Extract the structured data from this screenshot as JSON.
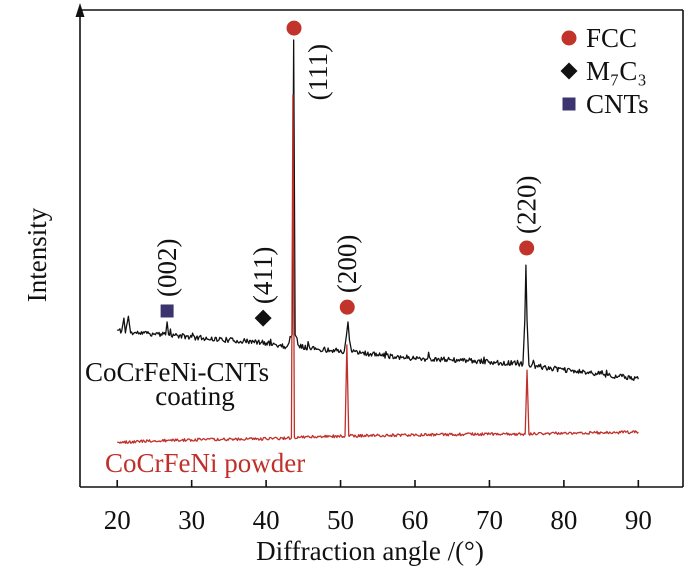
{
  "chart_data": {
    "type": "line",
    "xlabel": "Diffraction angle /(°)",
    "ylabel": "Intensity",
    "xlim": [
      15,
      96
    ],
    "ylim": [
      0,
      100
    ],
    "x_ticks": [
      20,
      30,
      40,
      50,
      60,
      70,
      80,
      90
    ],
    "grid": false,
    "legend": {
      "position": "top-right",
      "items": [
        {
          "label": "FCC",
          "marker": "circle",
          "color": "#c0342b"
        },
        {
          "label": "M₇C₃",
          "marker": "diamond",
          "color": "#111111"
        },
        {
          "label": "CNTs",
          "marker": "square",
          "color": "#3b356f"
        }
      ]
    },
    "series": [
      {
        "label_lines": [
          "CoCrFeNi-CNTs",
          "coating"
        ],
        "color": "#111111",
        "points": [
          [
            20.0,
            32.9
          ],
          [
            20.6,
            32.7
          ],
          [
            20.9,
            35.4
          ],
          [
            21.1,
            32.3
          ],
          [
            21.5,
            35.8
          ],
          [
            21.8,
            32.3
          ],
          [
            23.0,
            32.3
          ],
          [
            25.0,
            32.1
          ],
          [
            26.5,
            31.9
          ],
          [
            26.7,
            34.6
          ],
          [
            26.9,
            31.9
          ],
          [
            30.0,
            31.4
          ],
          [
            35.0,
            30.8
          ],
          [
            40.0,
            30.2
          ],
          [
            42.8,
            29.4
          ],
          [
            43.5,
            31.9
          ],
          [
            43.7,
            93.7
          ],
          [
            43.9,
            31.9
          ],
          [
            44.4,
            29.6
          ],
          [
            47.0,
            28.9
          ],
          [
            50.5,
            28.5
          ],
          [
            50.8,
            31.9
          ],
          [
            51.0,
            34.6
          ],
          [
            51.2,
            30.8
          ],
          [
            51.5,
            28.3
          ],
          [
            55.0,
            27.7
          ],
          [
            60.0,
            27.0
          ],
          [
            65.0,
            26.6
          ],
          [
            70.0,
            26.2
          ],
          [
            74.5,
            25.8
          ],
          [
            74.75,
            35.0
          ],
          [
            74.9,
            46.5
          ],
          [
            75.05,
            35.0
          ],
          [
            75.3,
            25.6
          ],
          [
            80.0,
            24.5
          ],
          [
            85.0,
            23.7
          ],
          [
            90.0,
            22.6
          ]
        ]
      },
      {
        "label_lines": [
          "CoCrFeNi powder"
        ],
        "color": "#c0302a",
        "points": [
          [
            20.0,
            9.4
          ],
          [
            30.0,
            9.9
          ],
          [
            40.0,
            10.1
          ],
          [
            43.4,
            10.3
          ],
          [
            43.6,
            82.2
          ],
          [
            43.8,
            10.4
          ],
          [
            50.6,
            10.7
          ],
          [
            50.85,
            29.8
          ],
          [
            51.1,
            10.7
          ],
          [
            60.0,
            10.9
          ],
          [
            70.0,
            11.1
          ],
          [
            74.8,
            11.1
          ],
          [
            75.05,
            24.5
          ],
          [
            75.3,
            11.1
          ],
          [
            80.0,
            11.3
          ],
          [
            90.0,
            11.5
          ]
        ]
      }
    ],
    "annotations": [
      {
        "label": "(002)",
        "x": 26.7,
        "y": 36.9,
        "marker": "square",
        "color": "#3b356f",
        "label_position": "above"
      },
      {
        "label": "(411)",
        "x": 39.6,
        "y": 35.4,
        "marker": "diamond",
        "color": "#111111",
        "label_position": "above"
      },
      {
        "label": "(111)",
        "x": 43.75,
        "y": 96.2,
        "marker": "circle",
        "color": "#c0342b",
        "label_position": "right"
      },
      {
        "label": "(200)",
        "x": 50.9,
        "y": 37.7,
        "marker": "circle",
        "color": "#c0342b",
        "label_position": "above"
      },
      {
        "label": "(220)",
        "x": 75.0,
        "y": 50.1,
        "marker": "circle",
        "color": "#c0342b",
        "label_position": "above"
      }
    ]
  }
}
